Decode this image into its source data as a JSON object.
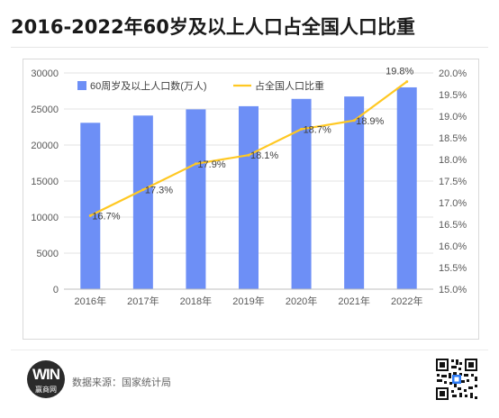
{
  "header": {
    "title": "2016-2022年60岁及以上人口占全国人口比重"
  },
  "footer": {
    "source": "数据来源：国家统计局",
    "logo_text": "赢商网",
    "logo_mark": "WIN"
  },
  "colors": {
    "bar": "#6d8ff6",
    "line": "#ffc822",
    "axis_text": "#595959",
    "grid": "#e3e3e3"
  },
  "chart_data": {
    "type": "bar",
    "categories": [
      "2016年",
      "2017年",
      "2018年",
      "2019年",
      "2020年",
      "2021年",
      "2022年"
    ],
    "series": [
      {
        "name": "60周岁及以上人口数(万人)",
        "type": "bar",
        "axis": "left",
        "values": [
          23086,
          24090,
          24949,
          25388,
          26402,
          26736,
          28004
        ]
      },
      {
        "name": "占全国人口比重",
        "type": "line",
        "axis": "right",
        "values": [
          16.7,
          17.3,
          17.9,
          18.1,
          18.7,
          18.9,
          19.8
        ],
        "labels": [
          "16.7%",
          "17.3%",
          "17.9%",
          "18.1%",
          "18.7%",
          "18.9%",
          "19.8%"
        ]
      }
    ],
    "y_left": {
      "min": 0,
      "max": 30000,
      "ticks": [
        "0",
        "5000",
        "10000",
        "15000",
        "20000",
        "25000",
        "30000"
      ]
    },
    "y_right": {
      "min": 15.0,
      "max": 20.0,
      "ticks": [
        "15.0%",
        "15.5%",
        "16.0%",
        "16.5%",
        "17.0%",
        "17.5%",
        "18.0%",
        "18.5%",
        "19.0%",
        "19.5%",
        "20.0%"
      ]
    },
    "grid": true,
    "legend_position": "top-left"
  }
}
